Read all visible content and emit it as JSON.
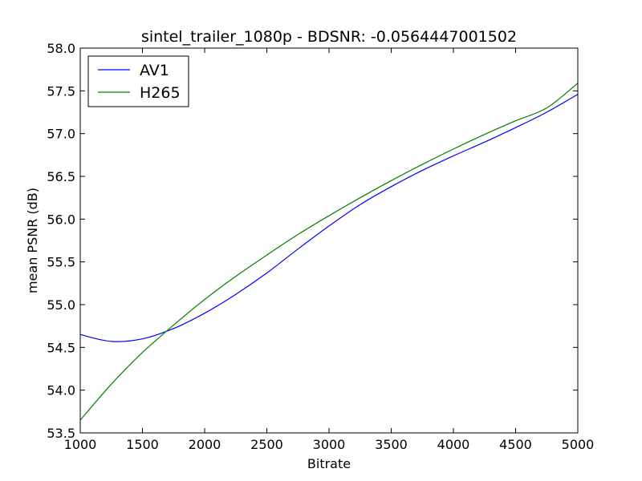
{
  "chart_data": {
    "type": "line",
    "title": "sintel_trailer_1080p - BDSNR: -0.0564447001502",
    "xlabel": "Bitrate",
    "ylabel": "mean PSNR (dB)",
    "xlim": [
      1000,
      5000
    ],
    "ylim": [
      53.5,
      58.0
    ],
    "x_ticks": [
      "1000",
      "1500",
      "2000",
      "2500",
      "3000",
      "3500",
      "4000",
      "4500",
      "5000"
    ],
    "y_ticks": [
      "53.5",
      "54.0",
      "54.5",
      "55.0",
      "55.5",
      "56.0",
      "56.5",
      "57.0",
      "57.5",
      "58.0"
    ],
    "grid": false,
    "legend_position": "top-left",
    "x": [
      1000,
      1250,
      1500,
      1750,
      2000,
      2250,
      2500,
      2750,
      3000,
      3250,
      3500,
      3750,
      4000,
      4250,
      4500,
      4750,
      5000
    ],
    "series": [
      {
        "name": "AV1",
        "color": "#0000ff",
        "values": [
          54.65,
          54.57,
          54.6,
          54.72,
          54.9,
          55.12,
          55.37,
          55.65,
          55.92,
          56.17,
          56.38,
          56.57,
          56.74,
          56.9,
          57.07,
          57.25,
          57.46
        ]
      },
      {
        "name": "H265",
        "color": "#008000",
        "values": [
          53.65,
          54.07,
          54.44,
          54.76,
          55.06,
          55.33,
          55.58,
          55.82,
          56.04,
          56.25,
          56.45,
          56.64,
          56.82,
          56.99,
          57.15,
          57.3,
          57.59
        ]
      }
    ]
  }
}
